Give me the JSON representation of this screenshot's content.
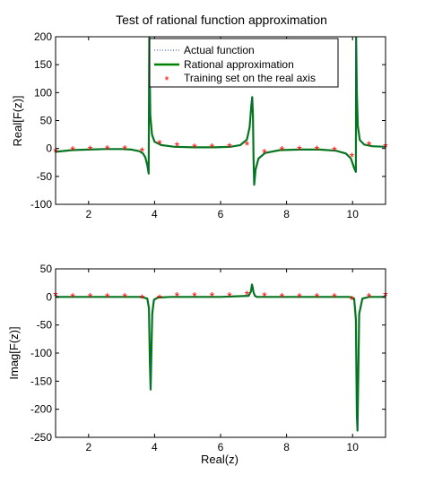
{
  "chart_data": [
    {
      "type": "line",
      "title": "Test of rational function approximation",
      "ylabel": "Real[F(z)]",
      "xlabel": "",
      "xlim": [
        1,
        11
      ],
      "ylim": [
        -100,
        200
      ],
      "xticks": [
        2,
        4,
        6,
        8,
        10
      ],
      "yticks": [
        -100,
        -50,
        0,
        50,
        100,
        150,
        200
      ],
      "legend": {
        "placement": "top-center",
        "entries": [
          "Actual function",
          "Rational approximation",
          "Training set on the real axis"
        ]
      },
      "colors": {
        "actual": "#1f3fd0",
        "rational": "#008000",
        "training": "#ff0000"
      },
      "series": [
        {
          "name": "Rational approximation",
          "style": "solid",
          "x": [
            1.0,
            1.5,
            2.0,
            2.5,
            3.0,
            3.3,
            3.55,
            3.65,
            3.72,
            3.78,
            3.82,
            3.84,
            3.85,
            3.87,
            3.92,
            4.0,
            4.2,
            4.6,
            5.2,
            5.8,
            6.3,
            6.6,
            6.8,
            6.88,
            6.93,
            6.96,
            6.98,
            7.0,
            7.02,
            7.06,
            7.15,
            7.35,
            7.8,
            8.4,
            9.0,
            9.5,
            9.8,
            9.95,
            10.05,
            10.1,
            10.11,
            10.13,
            10.16,
            10.22,
            10.35,
            10.6,
            11.0
          ],
          "y": [
            -6,
            -3,
            -2,
            -1,
            -1,
            -2,
            -5,
            -9,
            -16,
            -30,
            -45,
            198,
            150,
            60,
            25,
            12,
            6,
            3,
            2,
            2,
            3,
            6,
            16,
            38,
            75,
            92,
            60,
            -20,
            -65,
            -38,
            -18,
            -8,
            -3,
            -2,
            -2,
            -4,
            -9,
            -18,
            -35,
            -42,
            198,
            100,
            40,
            15,
            7,
            4,
            3
          ]
        },
        {
          "name": "Actual function",
          "style": "dotted",
          "x": [
            1.0,
            1.5,
            2.0,
            2.5,
            3.0,
            3.3,
            3.55,
            3.65,
            3.72,
            3.78,
            3.82,
            3.84,
            3.85,
            3.87,
            3.92,
            4.0,
            4.2,
            4.6,
            5.2,
            5.8,
            6.3,
            6.6,
            6.8,
            6.88,
            6.93,
            6.96,
            6.98,
            7.0,
            7.02,
            7.06,
            7.15,
            7.35,
            7.8,
            8.4,
            9.0,
            9.5,
            9.8,
            9.95,
            10.05,
            10.1,
            10.11,
            10.13,
            10.16,
            10.22,
            10.35,
            10.6,
            11.0
          ],
          "y": [
            -6,
            -3,
            -2,
            -1,
            -1,
            -2,
            -5,
            -9,
            -16,
            -30,
            -45,
            198,
            150,
            60,
            25,
            12,
            6,
            3,
            2,
            2,
            3,
            6,
            16,
            38,
            75,
            92,
            60,
            -20,
            -65,
            -38,
            -18,
            -8,
            -3,
            -2,
            -2,
            -4,
            -9,
            -18,
            -35,
            -42,
            198,
            100,
            40,
            15,
            7,
            4,
            3
          ]
        },
        {
          "name": "Training set on the real axis",
          "style": "markers",
          "x": [
            1.0,
            1.52,
            2.05,
            2.57,
            3.1,
            3.62,
            4.15,
            4.68,
            5.21,
            5.74,
            6.27,
            6.8,
            7.33,
            7.86,
            8.39,
            8.92,
            9.45,
            9.98,
            10.5,
            11.0
          ],
          "y": [
            -6,
            -3,
            -2,
            -1,
            -1,
            -5,
            8,
            4,
            2,
            2,
            3,
            6,
            -8,
            -3,
            -2,
            -2,
            -4,
            -15,
            6,
            3
          ]
        }
      ]
    },
    {
      "type": "line",
      "title": "",
      "ylabel": "Imag[F(z)]",
      "xlabel": "Real(z)",
      "xlim": [
        1,
        11
      ],
      "ylim": [
        -250,
        50
      ],
      "xticks": [
        2,
        4,
        6,
        8,
        10
      ],
      "yticks": [
        -250,
        -200,
        -150,
        -100,
        -50,
        0,
        50
      ],
      "series": [
        {
          "name": "Rational approximation",
          "style": "solid",
          "x": [
            1.0,
            2.0,
            3.0,
            3.6,
            3.78,
            3.83,
            3.86,
            3.88,
            3.9,
            3.93,
            3.98,
            4.1,
            4.5,
            6.0,
            6.85,
            6.92,
            6.95,
            6.97,
            7.0,
            7.04,
            7.1,
            7.3,
            8.0,
            9.0,
            9.9,
            10.05,
            10.1,
            10.13,
            10.15,
            10.17,
            10.2,
            10.3,
            10.5,
            11.0
          ],
          "y": [
            0,
            0,
            0,
            0,
            -3,
            -20,
            -120,
            -165,
            -110,
            -30,
            -5,
            -1,
            0,
            0,
            2,
            10,
            22,
            18,
            8,
            2,
            0,
            0,
            0,
            0,
            0,
            -3,
            -40,
            -210,
            -238,
            -150,
            -30,
            -3,
            0,
            0
          ]
        },
        {
          "name": "Actual function",
          "style": "dotted",
          "x": [
            1.0,
            2.0,
            3.0,
            3.6,
            3.78,
            3.83,
            3.86,
            3.88,
            3.9,
            3.93,
            3.98,
            4.1,
            4.5,
            6.0,
            6.85,
            6.92,
            6.95,
            6.97,
            7.0,
            7.04,
            7.1,
            7.3,
            8.0,
            9.0,
            9.9,
            10.05,
            10.1,
            10.13,
            10.15,
            10.17,
            10.2,
            10.3,
            10.5,
            11.0
          ],
          "y": [
            0,
            0,
            0,
            0,
            -3,
            -20,
            -120,
            -165,
            -110,
            -30,
            -5,
            -1,
            0,
            0,
            2,
            10,
            22,
            18,
            8,
            2,
            0,
            0,
            0,
            0,
            0,
            -3,
            -40,
            -210,
            -238,
            -150,
            -30,
            -3,
            0,
            0
          ]
        },
        {
          "name": "Training set on the real axis",
          "style": "markers",
          "x": [
            1.0,
            1.52,
            2.05,
            2.57,
            3.1,
            3.62,
            4.15,
            4.68,
            5.21,
            5.74,
            6.27,
            6.8,
            7.33,
            7.86,
            8.39,
            8.92,
            9.45,
            9.98,
            10.5,
            11.0
          ],
          "y": [
            2,
            0,
            0,
            0,
            0,
            -3,
            -3,
            1,
            1,
            1,
            1,
            4,
            1,
            0,
            0,
            0,
            0,
            -5,
            0,
            2
          ]
        }
      ]
    }
  ]
}
